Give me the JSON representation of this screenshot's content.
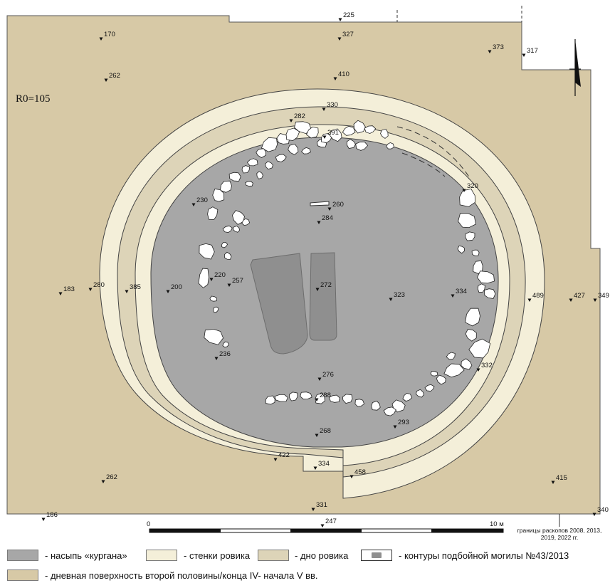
{
  "radius_label": "R0=105",
  "colors": {
    "mound": "#a7a7a7",
    "ditch_wall": "#f4efd9",
    "ditch_bottom": "#ddd4b8",
    "surface": "#d7c9a6",
    "grave": "#8f8f8f",
    "stone": "#ffffff",
    "outline": "#4a4a4a"
  },
  "elevations": [
    {
      "id": "e225",
      "label": "225"
    },
    {
      "id": "e327",
      "label": "327"
    },
    {
      "id": "e170",
      "label": "170"
    },
    {
      "id": "e373",
      "label": "373"
    },
    {
      "id": "e317",
      "label": "317"
    },
    {
      "id": "e262a",
      "label": "262"
    },
    {
      "id": "e410",
      "label": "410"
    },
    {
      "id": "e330",
      "label": "330"
    },
    {
      "id": "e282",
      "label": "282"
    },
    {
      "id": "e291",
      "label": "291"
    },
    {
      "id": "e320",
      "label": "320"
    },
    {
      "id": "e230",
      "label": "230"
    },
    {
      "id": "e260",
      "label": "260"
    },
    {
      "id": "e284",
      "label": "284"
    },
    {
      "id": "e183",
      "label": "183"
    },
    {
      "id": "e280",
      "label": "280"
    },
    {
      "id": "e385",
      "label": "385"
    },
    {
      "id": "e200",
      "label": "200"
    },
    {
      "id": "e220",
      "label": "220"
    },
    {
      "id": "e257",
      "label": "257"
    },
    {
      "id": "e272",
      "label": "272"
    },
    {
      "id": "e323",
      "label": "323"
    },
    {
      "id": "e334a",
      "label": "334"
    },
    {
      "id": "e489",
      "label": "489"
    },
    {
      "id": "e427",
      "label": "427"
    },
    {
      "id": "e349",
      "label": "349"
    },
    {
      "id": "e236",
      "label": "236"
    },
    {
      "id": "e332",
      "label": "332"
    },
    {
      "id": "e276",
      "label": "276"
    },
    {
      "id": "e288",
      "label": "288"
    },
    {
      "id": "e293",
      "label": "293"
    },
    {
      "id": "e268",
      "label": "268"
    },
    {
      "id": "e422",
      "label": "422"
    },
    {
      "id": "e334b",
      "label": "334"
    },
    {
      "id": "e458",
      "label": "458"
    },
    {
      "id": "e262b",
      "label": "262"
    },
    {
      "id": "e415",
      "label": "415"
    },
    {
      "id": "e331",
      "label": "331"
    },
    {
      "id": "e186",
      "label": "186"
    },
    {
      "id": "e247",
      "label": "247"
    },
    {
      "id": "e340",
      "label": "340"
    }
  ],
  "scale": {
    "start": "0",
    "end": "10 м"
  },
  "boundary_note": "границы раскопов 2008, 2013, 2019, 2022 гг.",
  "legend": {
    "mound": "- насыпь «кургана»",
    "ditch_wall": "- стенки ровика",
    "ditch_bottom": "- дно ровика",
    "grave": "- контуры подбойной могилы №43/2013",
    "surface": "- дневная поверхность второй половины/конца IV- начала V вв."
  }
}
